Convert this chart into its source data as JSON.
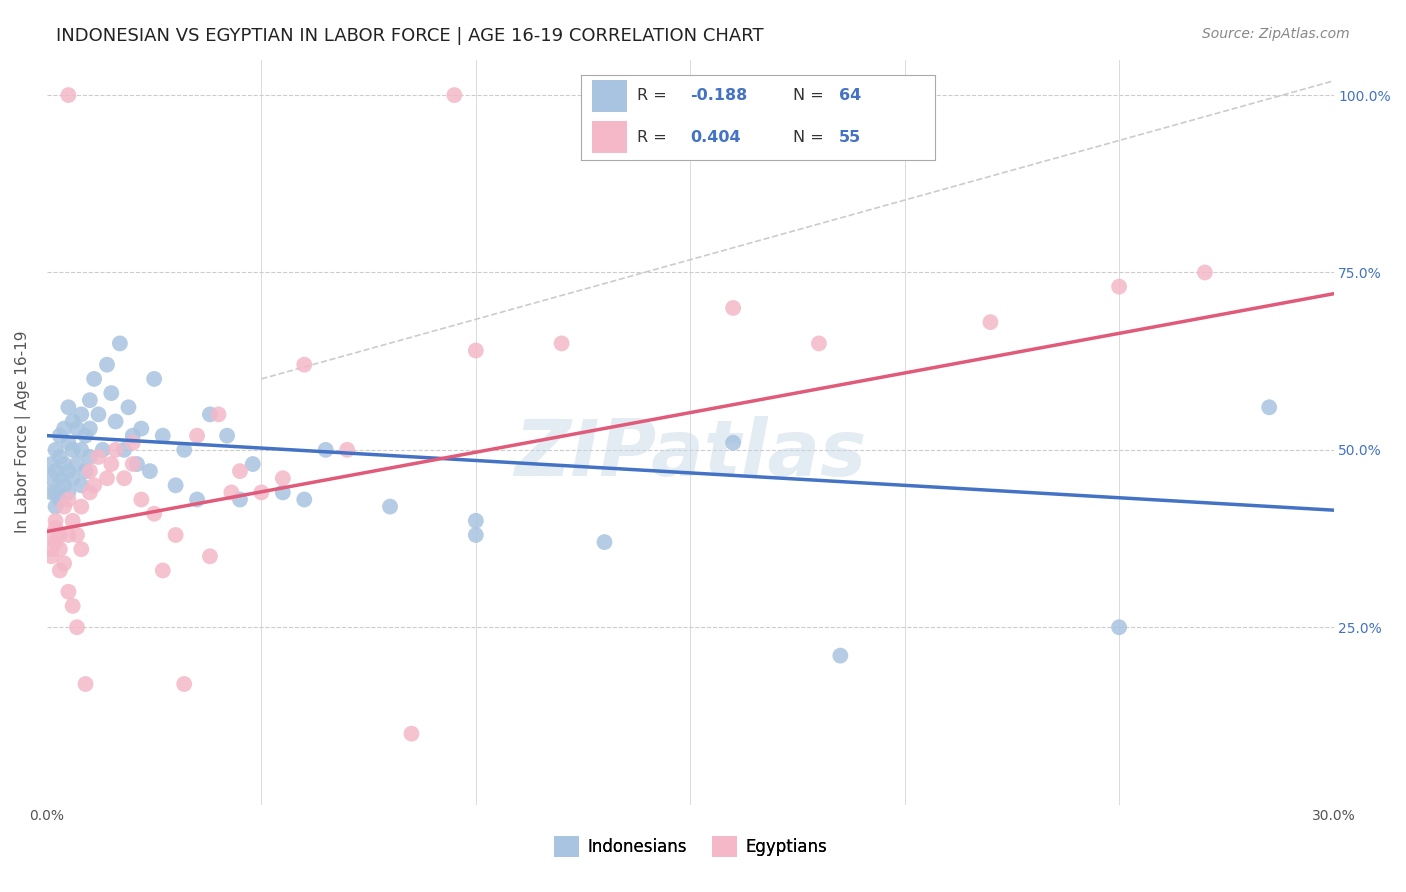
{
  "title": "INDONESIAN VS EGYPTIAN IN LABOR FORCE | AGE 16-19 CORRELATION CHART",
  "source": "Source: ZipAtlas.com",
  "ylabel": "In Labor Force | Age 16-19",
  "xlim": [
    0.0,
    0.3
  ],
  "ylim": [
    0.0,
    1.05
  ],
  "indonesian_color": "#a8c4e0",
  "egyptian_color": "#f4b8c8",
  "indonesian_line_color": "#4472c4",
  "egyptian_line_color": "#e05a7a",
  "legend_R_indonesian": "-0.188",
  "legend_N_indonesian": "64",
  "legend_R_egyptian": "0.404",
  "legend_N_egyptian": "55",
  "legend_label_indonesian": "Indonesians",
  "legend_label_egyptian": "Egyptians",
  "title_fontsize": 13,
  "source_fontsize": 10,
  "label_fontsize": 11,
  "tick_fontsize": 10,
  "background_color": "#ffffff",
  "grid_color": "#cccccc",
  "watermark": "ZIPatlas",
  "indo_line_x0": 0.0,
  "indo_line_x1": 0.3,
  "indo_line_y0": 0.52,
  "indo_line_y1": 0.415,
  "egypt_line_x0": 0.0,
  "egypt_line_x1": 0.3,
  "egypt_line_y0": 0.385,
  "egypt_line_y1": 0.72,
  "dash_line_x0": 0.05,
  "dash_line_x1": 0.3,
  "dash_line_y0": 0.6,
  "dash_line_y1": 1.02,
  "indo_x": [
    0.001,
    0.001,
    0.001,
    0.002,
    0.002,
    0.002,
    0.002,
    0.003,
    0.003,
    0.003,
    0.003,
    0.004,
    0.004,
    0.004,
    0.005,
    0.005,
    0.005,
    0.005,
    0.006,
    0.006,
    0.006,
    0.007,
    0.007,
    0.008,
    0.008,
    0.008,
    0.009,
    0.009,
    0.01,
    0.01,
    0.01,
    0.011,
    0.012,
    0.013,
    0.014,
    0.015,
    0.016,
    0.017,
    0.018,
    0.019,
    0.02,
    0.021,
    0.022,
    0.024,
    0.025,
    0.027,
    0.03,
    0.032,
    0.035,
    0.038,
    0.042,
    0.048,
    0.055,
    0.065,
    0.08,
    0.1,
    0.13,
    0.16,
    0.185,
    0.25,
    0.285,
    0.1,
    0.06,
    0.045
  ],
  "indo_y": [
    0.44,
    0.46,
    0.48,
    0.42,
    0.44,
    0.47,
    0.5,
    0.43,
    0.46,
    0.49,
    0.52,
    0.45,
    0.48,
    0.53,
    0.44,
    0.47,
    0.51,
    0.56,
    0.46,
    0.5,
    0.54,
    0.48,
    0.53,
    0.45,
    0.5,
    0.55,
    0.47,
    0.52,
    0.57,
    0.49,
    0.53,
    0.6,
    0.55,
    0.5,
    0.62,
    0.58,
    0.54,
    0.65,
    0.5,
    0.56,
    0.52,
    0.48,
    0.53,
    0.47,
    0.6,
    0.52,
    0.45,
    0.5,
    0.43,
    0.55,
    0.52,
    0.48,
    0.44,
    0.5,
    0.42,
    0.38,
    0.37,
    0.51,
    0.21,
    0.25,
    0.56,
    0.4,
    0.43,
    0.43
  ],
  "egypt_x": [
    0.001,
    0.001,
    0.001,
    0.002,
    0.002,
    0.002,
    0.003,
    0.003,
    0.003,
    0.004,
    0.004,
    0.005,
    0.005,
    0.005,
    0.006,
    0.006,
    0.007,
    0.007,
    0.008,
    0.008,
    0.009,
    0.01,
    0.01,
    0.011,
    0.012,
    0.014,
    0.015,
    0.016,
    0.018,
    0.02,
    0.02,
    0.022,
    0.025,
    0.027,
    0.03,
    0.032,
    0.035,
    0.038,
    0.04,
    0.043,
    0.045,
    0.05,
    0.055,
    0.06,
    0.07,
    0.085,
    0.1,
    0.12,
    0.16,
    0.18,
    0.22,
    0.25,
    0.27,
    0.095,
    0.005
  ],
  "egypt_y": [
    0.38,
    0.35,
    0.36,
    0.4,
    0.37,
    0.39,
    0.36,
    0.33,
    0.38,
    0.42,
    0.34,
    0.3,
    0.38,
    0.43,
    0.28,
    0.4,
    0.38,
    0.25,
    0.36,
    0.42,
    0.17,
    0.44,
    0.47,
    0.45,
    0.49,
    0.46,
    0.48,
    0.5,
    0.46,
    0.48,
    0.51,
    0.43,
    0.41,
    0.33,
    0.38,
    0.17,
    0.52,
    0.35,
    0.55,
    0.44,
    0.47,
    0.44,
    0.46,
    0.62,
    0.5,
    0.1,
    0.64,
    0.65,
    0.7,
    0.65,
    0.68,
    0.73,
    0.75,
    1.0,
    1.0
  ]
}
